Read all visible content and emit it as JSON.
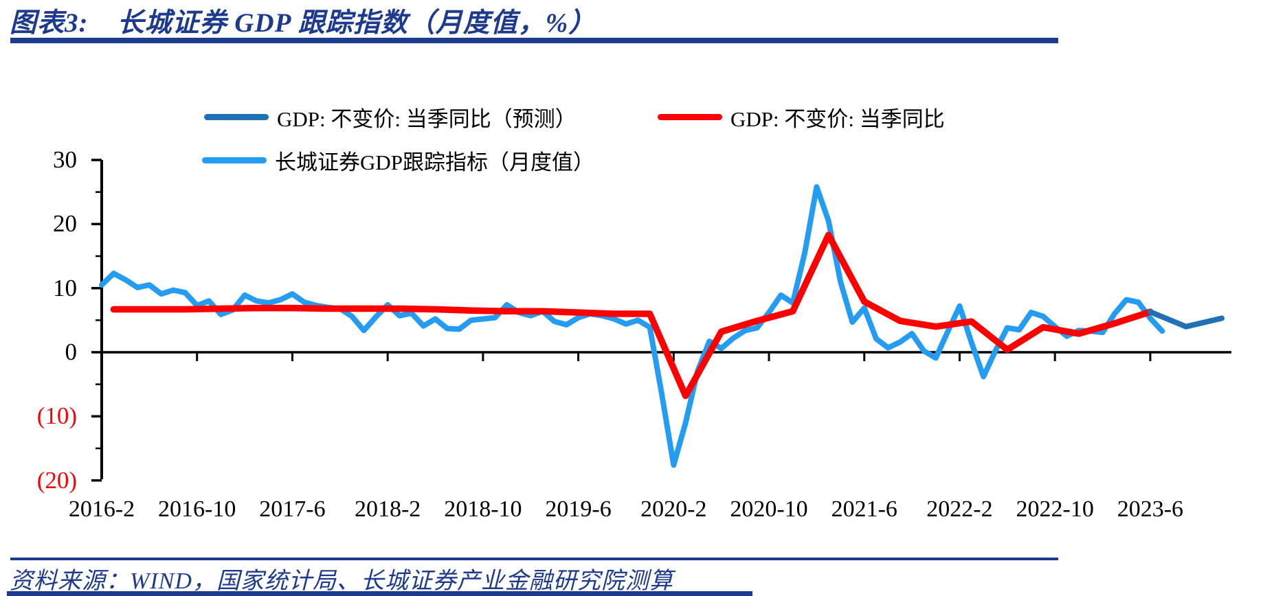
{
  "title": {
    "prefix": "图表3:",
    "text": "长城证券 GDP 跟踪指数（月度值，%）"
  },
  "legend": {
    "items": [
      {
        "key": "forecast",
        "label": "GDP: 不变价: 当季同比（预测）",
        "color": "#2071B4"
      },
      {
        "key": "actual",
        "label": "GDP: 不变价: 当季同比",
        "color": "#FF0000"
      },
      {
        "key": "tracking",
        "label": "长城证券GDP跟踪指标（月度值）",
        "color": "#249CF2"
      }
    ]
  },
  "footer": {
    "source": "资料来源：WIND，国家统计局、长城证券产业金融研究院测算"
  },
  "colors": {
    "accent_navy": "#1E3A8F",
    "axis_black": "#000000",
    "negative_label_red": "#FF0000",
    "forecast_blue": "#2071B4",
    "actual_red": "#FF0000",
    "tracking_lightblue": "#249CF2"
  },
  "chart_data": {
    "type": "line",
    "unit": "%",
    "grid": false,
    "legend_position": "top",
    "y_axis": {
      "min": -20,
      "max": 30,
      "major_step": 10,
      "tick_labels": [
        {
          "label": "30",
          "value": 30,
          "negative": false
        },
        {
          "label": "20",
          "value": 20,
          "negative": false
        },
        {
          "label": "10",
          "value": 10,
          "negative": false
        },
        {
          "label": "0",
          "value": 0,
          "negative": false
        },
        {
          "label": "(10)",
          "value": -10,
          "negative": true
        },
        {
          "label": "(20)",
          "value": -20,
          "negative": true
        }
      ]
    },
    "x_axis": {
      "tick_labels": [
        {
          "label": "2016-2",
          "month": "2016-2"
        },
        {
          "label": "2016-10",
          "month": "2016-10"
        },
        {
          "label": "2017-6",
          "month": "2017-6"
        },
        {
          "label": "2018-2",
          "month": "2018-2"
        },
        {
          "label": "2018-10",
          "month": "2018-10"
        },
        {
          "label": "2019-6",
          "month": "2019-6"
        },
        {
          "label": "2020-2",
          "month": "2020-2"
        },
        {
          "label": "2020-10",
          "month": "2020-10"
        },
        {
          "label": "2021-6",
          "month": "2021-6"
        },
        {
          "label": "2022-2",
          "month": "2022-2"
        },
        {
          "label": "2022-10",
          "month": "2022-10"
        },
        {
          "label": "2023-6",
          "month": "2023-6"
        }
      ]
    },
    "series": [
      {
        "key": "tracking",
        "name": "长城证券GDP跟踪指标（月度值）",
        "color": "#249CF2",
        "width": 8,
        "points": [
          [
            "2016-2",
            10.5
          ],
          [
            "2016-3",
            12.3
          ],
          [
            "2016-4",
            11.3
          ],
          [
            "2016-5",
            10.1
          ],
          [
            "2016-6",
            10.5
          ],
          [
            "2016-7",
            9.1
          ],
          [
            "2016-8",
            9.7
          ],
          [
            "2016-9",
            9.3
          ],
          [
            "2016-10",
            7.3
          ],
          [
            "2016-11",
            8.0
          ],
          [
            "2016-12",
            5.9
          ],
          [
            "2017-1",
            6.6
          ],
          [
            "2017-2",
            8.9
          ],
          [
            "2017-3",
            8.0
          ],
          [
            "2017-4",
            7.7
          ],
          [
            "2017-5",
            8.2
          ],
          [
            "2017-6",
            9.1
          ],
          [
            "2017-7",
            7.8
          ],
          [
            "2017-8",
            7.3
          ],
          [
            "2017-9",
            7.0
          ],
          [
            "2017-10",
            6.8
          ],
          [
            "2017-11",
            5.6
          ],
          [
            "2017-12",
            3.4
          ],
          [
            "2018-1",
            5.5
          ],
          [
            "2018-2",
            7.4
          ],
          [
            "2018-3",
            5.7
          ],
          [
            "2018-4",
            6.1
          ],
          [
            "2018-5",
            4.1
          ],
          [
            "2018-6",
            5.2
          ],
          [
            "2018-7",
            3.7
          ],
          [
            "2018-8",
            3.6
          ],
          [
            "2018-9",
            5.0
          ],
          [
            "2018-10",
            5.2
          ],
          [
            "2018-11",
            5.4
          ],
          [
            "2018-12",
            7.4
          ],
          [
            "2019-1",
            6.2
          ],
          [
            "2019-2",
            5.7
          ],
          [
            "2019-3",
            6.4
          ],
          [
            "2019-4",
            4.8
          ],
          [
            "2019-5",
            4.3
          ],
          [
            "2019-6",
            5.4
          ],
          [
            "2019-7",
            6.0
          ],
          [
            "2019-8",
            5.7
          ],
          [
            "2019-9",
            5.2
          ],
          [
            "2019-10",
            4.4
          ],
          [
            "2019-11",
            5.0
          ],
          [
            "2019-12",
            3.9
          ],
          [
            "2020-1",
            -6.5
          ],
          [
            "2020-2",
            -17.6
          ],
          [
            "2020-3",
            -11.0
          ],
          [
            "2020-4",
            -3.0
          ],
          [
            "2020-5",
            1.7
          ],
          [
            "2020-6",
            0.6
          ],
          [
            "2020-7",
            2.2
          ],
          [
            "2020-8",
            3.4
          ],
          [
            "2020-9",
            3.8
          ],
          [
            "2020-10",
            6.2
          ],
          [
            "2020-11",
            8.9
          ],
          [
            "2020-12",
            7.7
          ],
          [
            "2021-1",
            15.5
          ],
          [
            "2021-2",
            25.8
          ],
          [
            "2021-3",
            20.5
          ],
          [
            "2021-4",
            11.0
          ],
          [
            "2021-5",
            4.7
          ],
          [
            "2021-6",
            6.9
          ],
          [
            "2021-7",
            2.1
          ],
          [
            "2021-8",
            0.7
          ],
          [
            "2021-9",
            1.6
          ],
          [
            "2021-10",
            2.9
          ],
          [
            "2021-11",
            0.2
          ],
          [
            "2021-12",
            -0.9
          ],
          [
            "2022-1",
            3.2
          ],
          [
            "2022-2",
            7.2
          ],
          [
            "2022-3",
            1.5
          ],
          [
            "2022-4",
            -3.8
          ],
          [
            "2022-5",
            0.2
          ],
          [
            "2022-6",
            3.8
          ],
          [
            "2022-7",
            3.5
          ],
          [
            "2022-8",
            6.2
          ],
          [
            "2022-9",
            5.6
          ],
          [
            "2022-10",
            4.0
          ],
          [
            "2022-11",
            2.5
          ],
          [
            "2022-12",
            3.4
          ],
          [
            "2023-1",
            3.3
          ],
          [
            "2023-2",
            3.1
          ],
          [
            "2023-3",
            6.0
          ],
          [
            "2023-4",
            8.2
          ],
          [
            "2023-5",
            7.8
          ],
          [
            "2023-6",
            5.3
          ],
          [
            "2023-7",
            3.3
          ]
        ]
      },
      {
        "key": "actual",
        "name": "GDP: 不变价: 当季同比",
        "color": "#FF0000",
        "width": 9.5,
        "points": [
          [
            "2016-3",
            6.7
          ],
          [
            "2016-6",
            6.7
          ],
          [
            "2016-9",
            6.7
          ],
          [
            "2016-12",
            6.8
          ],
          [
            "2017-3",
            6.9
          ],
          [
            "2017-6",
            6.9
          ],
          [
            "2017-9",
            6.8
          ],
          [
            "2017-12",
            6.8
          ],
          [
            "2018-3",
            6.8
          ],
          [
            "2018-6",
            6.7
          ],
          [
            "2018-9",
            6.5
          ],
          [
            "2018-12",
            6.4
          ],
          [
            "2019-3",
            6.4
          ],
          [
            "2019-6",
            6.2
          ],
          [
            "2019-9",
            6.0
          ],
          [
            "2019-12",
            6.0
          ],
          [
            "2020-3",
            -6.8
          ],
          [
            "2020-6",
            3.2
          ],
          [
            "2020-9",
            4.9
          ],
          [
            "2020-12",
            6.4
          ],
          [
            "2021-3",
            18.3
          ],
          [
            "2021-6",
            7.9
          ],
          [
            "2021-9",
            4.9
          ],
          [
            "2021-12",
            4.0
          ],
          [
            "2022-3",
            4.8
          ],
          [
            "2022-6",
            0.4
          ],
          [
            "2022-9",
            3.9
          ],
          [
            "2022-12",
            2.9
          ],
          [
            "2023-3",
            4.5
          ],
          [
            "2023-6",
            6.3
          ]
        ]
      },
      {
        "key": "forecast",
        "name": "GDP: 不变价: 当季同比（预测）",
        "color": "#2071B4",
        "width": 8,
        "points": [
          [
            "2023-6",
            6.3
          ],
          [
            "2023-9",
            4.0
          ],
          [
            "2023-12",
            5.3
          ]
        ]
      }
    ]
  }
}
